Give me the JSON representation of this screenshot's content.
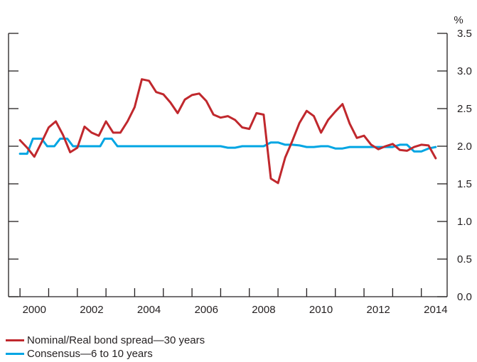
{
  "chart_data": {
    "type": "line",
    "title": "",
    "xlabel": "",
    "ylabel": "",
    "unit_label": "%",
    "y_axis_position": "right",
    "ylim": [
      0.0,
      3.5
    ],
    "xlim": [
      1999.6,
      2014.9
    ],
    "y_ticks": [
      "0.0",
      "0.5",
      "1.0",
      "1.5",
      "2.0",
      "2.5",
      "3.0",
      "3.5"
    ],
    "x_ticks": [
      "2000",
      "2002",
      "2004",
      "2006",
      "2008",
      "2010",
      "2012",
      "2014"
    ],
    "grid": false,
    "legend_position": "bottom-left",
    "series": [
      {
        "name": "Nominal/Real bond spread—30 years",
        "color": "#c0282d",
        "x": [
          2000.0,
          2000.25,
          2000.5,
          2000.75,
          2001.0,
          2001.25,
          2001.5,
          2001.75,
          2002.0,
          2002.25,
          2002.5,
          2002.75,
          2003.0,
          2003.25,
          2003.5,
          2003.75,
          2004.0,
          2004.25,
          2004.5,
          2004.75,
          2005.0,
          2005.25,
          2005.5,
          2005.75,
          2006.0,
          2006.25,
          2006.5,
          2006.75,
          2007.0,
          2007.25,
          2007.5,
          2007.75,
          2008.0,
          2008.25,
          2008.5,
          2008.75,
          2009.0,
          2009.25,
          2009.5,
          2009.75,
          2010.0,
          2010.25,
          2010.5,
          2010.75,
          2011.0,
          2011.25,
          2011.5,
          2011.75,
          2012.0,
          2012.25,
          2012.5,
          2012.75,
          2013.0,
          2013.25,
          2013.5,
          2013.75,
          2014.0,
          2014.25,
          2014.5
        ],
        "values": [
          2.08,
          1.98,
          1.86,
          2.05,
          2.25,
          2.33,
          2.15,
          1.92,
          1.98,
          2.26,
          2.18,
          2.14,
          2.33,
          2.18,
          2.18,
          2.33,
          2.52,
          2.89,
          2.87,
          2.72,
          2.69,
          2.58,
          2.44,
          2.62,
          2.68,
          2.7,
          2.6,
          2.42,
          2.38,
          2.4,
          2.35,
          2.25,
          2.23,
          2.44,
          2.42,
          1.57,
          1.51,
          1.85,
          2.07,
          2.31,
          2.47,
          2.4,
          2.18,
          2.35,
          2.46,
          2.56,
          2.3,
          2.11,
          2.14,
          2.02,
          1.96,
          2.0,
          2.03,
          1.95,
          1.94,
          1.99,
          2.02,
          2.01,
          1.84
        ]
      },
      {
        "name": "Consensus—6 to 10 years",
        "color": "#00a5e3",
        "x": [
          2000.0,
          2000.25,
          2000.45,
          2000.75,
          2000.95,
          2001.2,
          2001.4,
          2001.65,
          2001.85,
          2002.1,
          2002.5,
          2002.8,
          2002.95,
          2003.2,
          2003.4,
          2004.0,
          2005.0,
          2006.0,
          2007.0,
          2007.25,
          2007.5,
          2007.75,
          2008.0,
          2008.5,
          2008.75,
          2009.0,
          2009.25,
          2009.5,
          2009.75,
          2010.0,
          2010.25,
          2010.5,
          2010.75,
          2011.0,
          2011.25,
          2011.5,
          2012.0,
          2012.5,
          2013.0,
          2013.25,
          2013.5,
          2013.75,
          2014.0,
          2014.25,
          2014.5
        ],
        "values": [
          1.9,
          1.9,
          2.1,
          2.1,
          2.0,
          2.0,
          2.1,
          2.1,
          2.0,
          2.0,
          2.0,
          2.0,
          2.1,
          2.1,
          2.0,
          2.0,
          2.0,
          2.0,
          2.0,
          1.98,
          1.98,
          2.0,
          2.0,
          2.0,
          2.05,
          2.05,
          2.02,
          2.02,
          2.01,
          1.99,
          1.99,
          2.0,
          2.0,
          1.97,
          1.97,
          1.99,
          1.99,
          1.99,
          1.99,
          2.02,
          2.02,
          1.93,
          1.93,
          1.97,
          1.99
        ]
      }
    ]
  }
}
